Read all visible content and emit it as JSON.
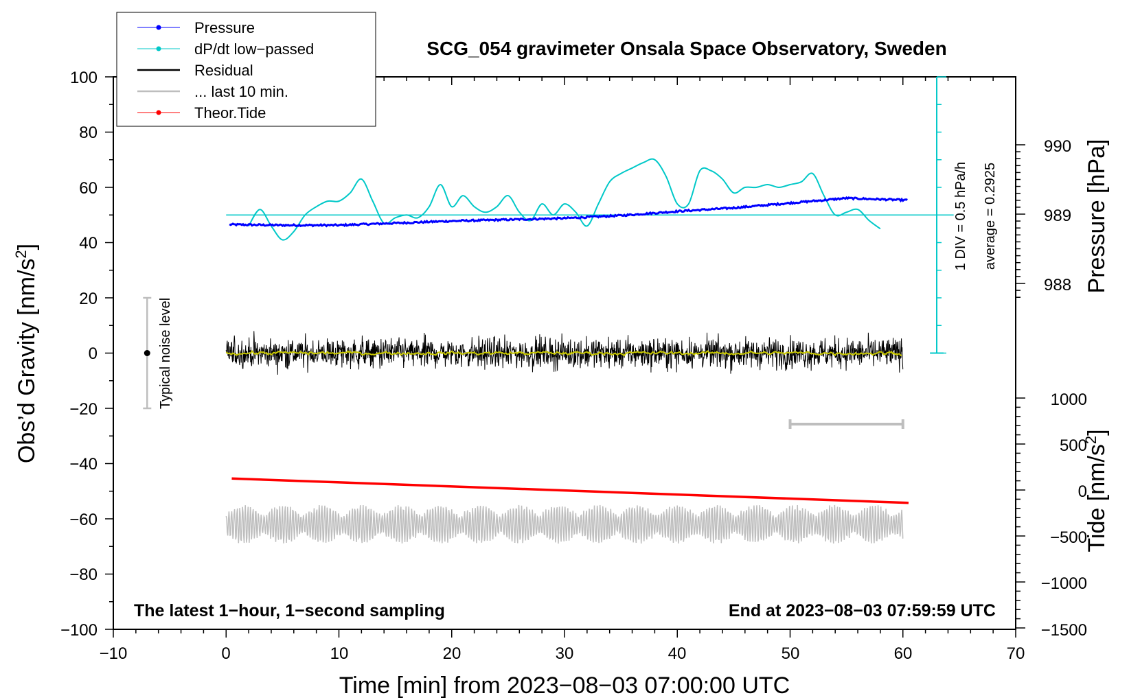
{
  "chart_data": {
    "type": "line",
    "title": "SCG_054 gravimeter Onsala Space Observatory, Sweden",
    "xlabel": "Time [min] from 2023−08−03 07:00:00 UTC",
    "ylabel_left": "Obs’d Gravity [nm/s",
    "ylabel_left_sup": "2",
    "ylabel_left_end": "]",
    "ylabel_right_pressure": "Pressure [hPa]",
    "ylabel_right_tide": "Tide [nm/s",
    "ylabel_right_tide_sup": "2",
    "ylabel_right_tide_end": "]",
    "xlim": [
      -10,
      70
    ],
    "ylim": [
      -100,
      100
    ],
    "x_ticks": [
      "−10",
      "0",
      "10",
      "20",
      "30",
      "40",
      "50",
      "60",
      "70"
    ],
    "y_ticks": [
      "−100",
      "−80",
      "−60",
      "−40",
      "−20",
      "0",
      "20",
      "40",
      "60",
      "80",
      "100"
    ],
    "pressure_ticks": [
      "988",
      "989",
      "990"
    ],
    "tide_ticks": [
      "−1500",
      "−1000",
      "−500",
      "0",
      "500",
      "1000"
    ],
    "legend": [
      {
        "label": "Pressure",
        "color": "#0000ff",
        "marker": true
      },
      {
        "label": "dP/dt low−passed",
        "color": "#00c8c8",
        "marker": true
      },
      {
        "label": "Residual",
        "color": "#000000",
        "marker": false
      },
      {
        "label": "... last 10 min.",
        "color": "#bebebe",
        "marker": false
      },
      {
        "label": "Theor.Tide",
        "color": "#ff0000",
        "marker": true
      }
    ],
    "dpdt_scale_label": "1 DIV = 0.5 hPa/h",
    "dpdt_average_label": "average = 0.2925",
    "noise_label": "Typical noise level",
    "noise_range": [
      -20,
      20
    ],
    "footer_left": "The latest 1−hour, 1−second sampling",
    "footer_right": "End at 2023−08−03 07:59:59 UTC",
    "last10_range": [
      50,
      60
    ],
    "series": [
      {
        "name": "Pressure",
        "color": "#0000ff",
        "unit": "hPa",
        "x": [
          0,
          5,
          10,
          15,
          20,
          25,
          30,
          35,
          40,
          45,
          50,
          55,
          60.5
        ],
        "values": [
          988.85,
          988.84,
          988.84,
          988.87,
          988.9,
          988.92,
          988.94,
          988.98,
          989.04,
          989.09,
          989.16,
          989.23,
          989.2
        ]
      },
      {
        "name": "dP/dt low−passed",
        "color": "#00c8c8",
        "x": [
          2,
          3,
          4,
          5,
          6,
          7,
          8,
          9,
          10,
          11,
          12,
          13,
          14,
          15,
          16,
          17,
          18,
          19,
          20,
          21,
          22,
          23,
          24,
          25,
          26,
          27,
          28,
          29,
          30,
          31,
          32,
          33,
          34,
          35,
          36,
          37,
          38,
          39,
          40,
          41,
          42,
          43,
          44,
          45,
          46,
          47,
          48,
          49,
          50,
          51,
          52,
          53,
          54,
          55,
          56,
          57,
          58
        ],
        "values": [
          46,
          52,
          46,
          41,
          44,
          50,
          53,
          55,
          55,
          58,
          63,
          55,
          47,
          49,
          50,
          49,
          53,
          61,
          53,
          57,
          53,
          51,
          53,
          57,
          51,
          48,
          54,
          50,
          54,
          51,
          46,
          54,
          62,
          65,
          67,
          69,
          70,
          64,
          54,
          54,
          66,
          66,
          63,
          58,
          60,
          60,
          61,
          60,
          61,
          62,
          65,
          57,
          50,
          51,
          52,
          48,
          45
        ]
      },
      {
        "name": "Residual",
        "color": "#000000",
        "x_range": [
          0,
          60
        ],
        "typical_amplitude": 5
      },
      {
        "name": "Residual smoothed",
        "color": "#c8c800",
        "x_range": [
          0,
          60
        ],
        "typical_amplitude": 1
      },
      {
        "name": "... last 10 min.",
        "color": "#bebebe",
        "x_range": [
          0,
          60
        ],
        "center": -62,
        "typical_amplitude": 5
      },
      {
        "name": "Theor.Tide",
        "color": "#ff0000",
        "unit": "nm/s2",
        "x": [
          0.5,
          60.5
        ],
        "values": [
          125,
          -140
        ]
      }
    ]
  }
}
